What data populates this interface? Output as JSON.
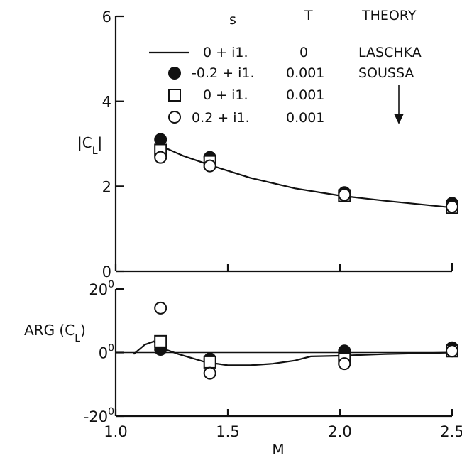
{
  "chart_data": [
    {
      "type": "scatter",
      "xlabel": "M",
      "ylabel": "|C",
      "ylabel_sub": "L",
      "ylabel_suffix": "|",
      "xlim": [
        1.0,
        2.5
      ],
      "ylim": [
        0,
        6
      ],
      "yticks": [
        "0",
        "2",
        "4",
        "6"
      ],
      "legend_headers": [
        "s",
        "T",
        "THEORY"
      ],
      "series": [
        {
          "s": "0 + i1.",
          "T": "0",
          "theory": "LASCHKA",
          "marker": "line",
          "x": [
            1.18,
            1.3,
            1.42,
            1.6,
            1.8,
            2.0,
            2.2,
            2.5
          ],
          "y": [
            3.0,
            2.72,
            2.5,
            2.2,
            1.95,
            1.78,
            1.66,
            1.5
          ]
        },
        {
          "s": "-0.2 + i1.",
          "T": "0.001",
          "theory": "SOUSSA",
          "marker": "filled-circle",
          "x": [
            1.2,
            1.42,
            2.02,
            2.5
          ],
          "y": [
            3.1,
            2.68,
            1.85,
            1.6
          ]
        },
        {
          "s": "0 + i1.",
          "T": "0.001",
          "marker": "open-square",
          "x": [
            1.2,
            1.42,
            2.02,
            2.5
          ],
          "y": [
            2.85,
            2.58,
            1.78,
            1.5
          ]
        },
        {
          "s": "0.2 + i1.",
          "T": "0.001",
          "marker": "open-circle",
          "x": [
            1.2,
            1.42,
            2.02,
            2.5
          ],
          "y": [
            2.68,
            2.48,
            1.8,
            1.52
          ]
        }
      ]
    },
    {
      "type": "scatter",
      "xlabel": "M",
      "ylabel": "ARG (C",
      "ylabel_sub": "L",
      "ylabel_suffix": ")",
      "xlim": [
        1.0,
        2.5
      ],
      "ylim": [
        -20,
        20
      ],
      "xticks": [
        "1.0",
        "1.5",
        "2.0",
        "2.5"
      ],
      "yticks": [
        "-20",
        "0",
        "20"
      ],
      "ytick_degree": "0",
      "series": [
        {
          "name": "theory",
          "marker": "line",
          "x": [
            1.08,
            1.13,
            1.17,
            1.2,
            1.28,
            1.4,
            1.5,
            1.6,
            1.7,
            1.8,
            1.87,
            2.0,
            2.2,
            2.5
          ],
          "y": [
            -0.5,
            2.5,
            3.5,
            1.5,
            -0.5,
            -3.0,
            -4.0,
            -4.0,
            -3.5,
            -2.5,
            -1.2,
            -1.0,
            -0.5,
            0
          ]
        },
        {
          "name": "-0.2 + i1.",
          "marker": "filled-circle",
          "x": [
            1.2,
            1.42,
            2.02,
            2.5
          ],
          "y": [
            1,
            -2,
            0.5,
            1.5
          ]
        },
        {
          "name": "0 + i1.",
          "marker": "open-square",
          "x": [
            1.2,
            1.42,
            2.02,
            2.5
          ],
          "y": [
            3.5,
            -3,
            -2,
            0.5
          ]
        },
        {
          "name": "0.2 + i1.",
          "marker": "open-circle",
          "x": [
            1.2,
            1.42,
            2.02,
            2.5
          ],
          "y": [
            14,
            -6.5,
            -3.5,
            0.5
          ]
        }
      ]
    }
  ]
}
